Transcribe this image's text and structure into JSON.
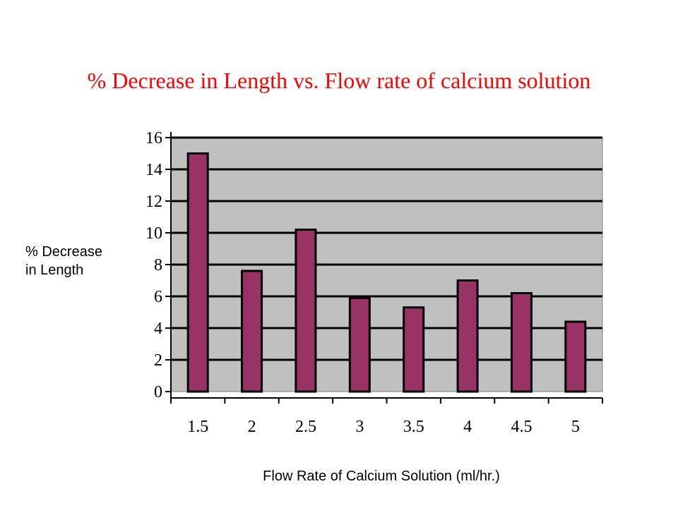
{
  "chart_data": {
    "type": "bar",
    "title": "% Decrease in Length vs.  Flow rate of calcium solution",
    "xlabel": "Flow Rate of Calcium Solution (ml/hr.)",
    "ylabel": "% Decrease in Length",
    "ylabel_lines": [
      "% Decrease",
      "in Length"
    ],
    "categories": [
      "1.5",
      "2",
      "2.5",
      "3",
      "3.5",
      "4",
      "4.5",
      "5"
    ],
    "values": [
      15.0,
      7.6,
      10.2,
      5.9,
      5.3,
      7.0,
      6.2,
      4.4
    ],
    "ylim": [
      0,
      16
    ],
    "yticks": [
      "0",
      "2",
      "4",
      "6",
      "8",
      "10",
      "12",
      "14",
      "16"
    ],
    "grid": true,
    "legend": "none",
    "colors": {
      "title": "#ff0000",
      "bar_fill": "#993366",
      "bar_stroke": "#000000",
      "plot_background": "#c0c0c0",
      "gridline": "#000000"
    }
  }
}
